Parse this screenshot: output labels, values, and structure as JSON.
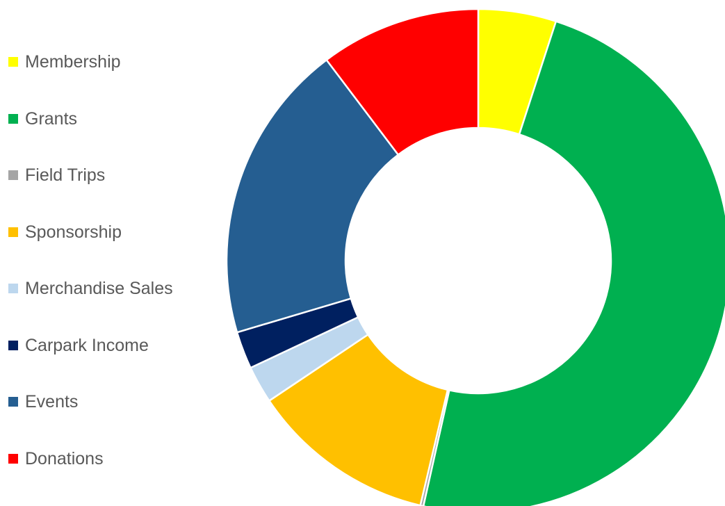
{
  "chart_data": {
    "type": "pie",
    "donut": true,
    "title": "",
    "legend_position": "left",
    "categories": [
      "Membership",
      "Grants",
      "Field Trips",
      "Sponsorship",
      "Merchandise Sales",
      "Carpark Income",
      "Events",
      "Donations"
    ],
    "values": [
      5.0,
      48.5,
      0.2,
      11.9,
      2.4,
      2.4,
      19.3,
      10.3
    ],
    "colors": [
      "#FFFF00",
      "#00B050",
      "#A5A5A5",
      "#FFC000",
      "#BDD7EE",
      "#002060",
      "#255E91",
      "#FF0000"
    ]
  }
}
